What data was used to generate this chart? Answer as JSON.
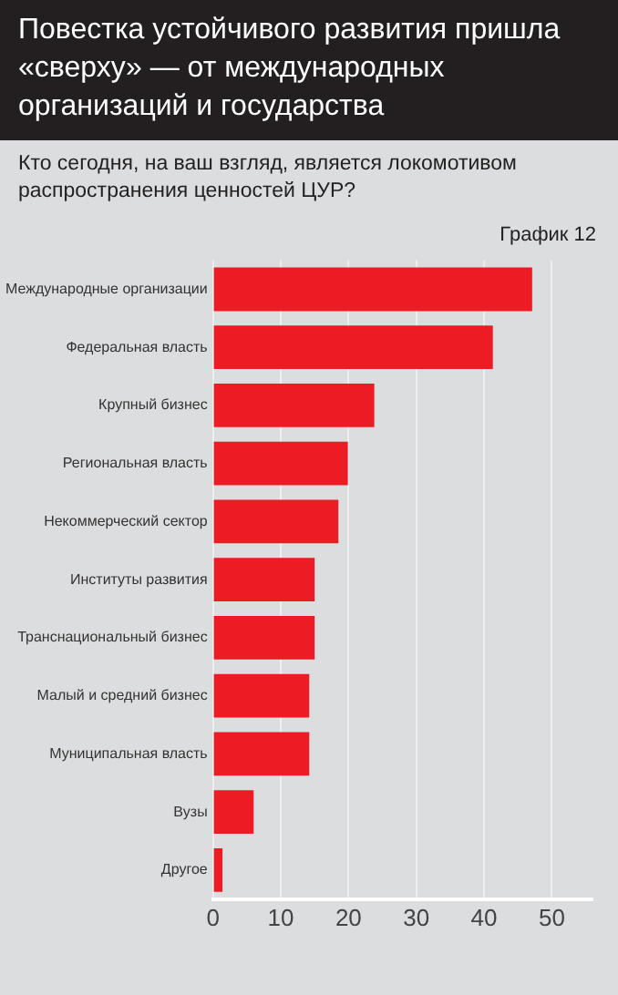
{
  "chart_data": {
    "type": "bar",
    "orientation": "horizontal",
    "title": "Повестка устойчивого развития пришла «сверху» — от международных организаций и государства",
    "subtitle": "Кто сегодня, на ваш взгляд, является локомотивом распространения ценностей ЦУР?",
    "annotations": [
      "График 12"
    ],
    "categories": [
      "Международные организации",
      "Федеральная власть",
      "Крупный бизнес",
      "Региональная власть",
      "Некоммерческий сектор",
      "Институты развития",
      "Транснациональный бизнес",
      "Малый и средний бизнес",
      "Муниципальная власть",
      "Вузы",
      "Другое"
    ],
    "values": [
      47.1,
      41.3,
      23.8,
      19.9,
      18.5,
      15.0,
      15.0,
      14.2,
      14.2,
      6.0,
      1.4
    ],
    "color": "#ed1c24",
    "xlim": [
      0,
      56
    ],
    "xticks": [
      0,
      10,
      20,
      30,
      40,
      50
    ],
    "grid": "x"
  }
}
